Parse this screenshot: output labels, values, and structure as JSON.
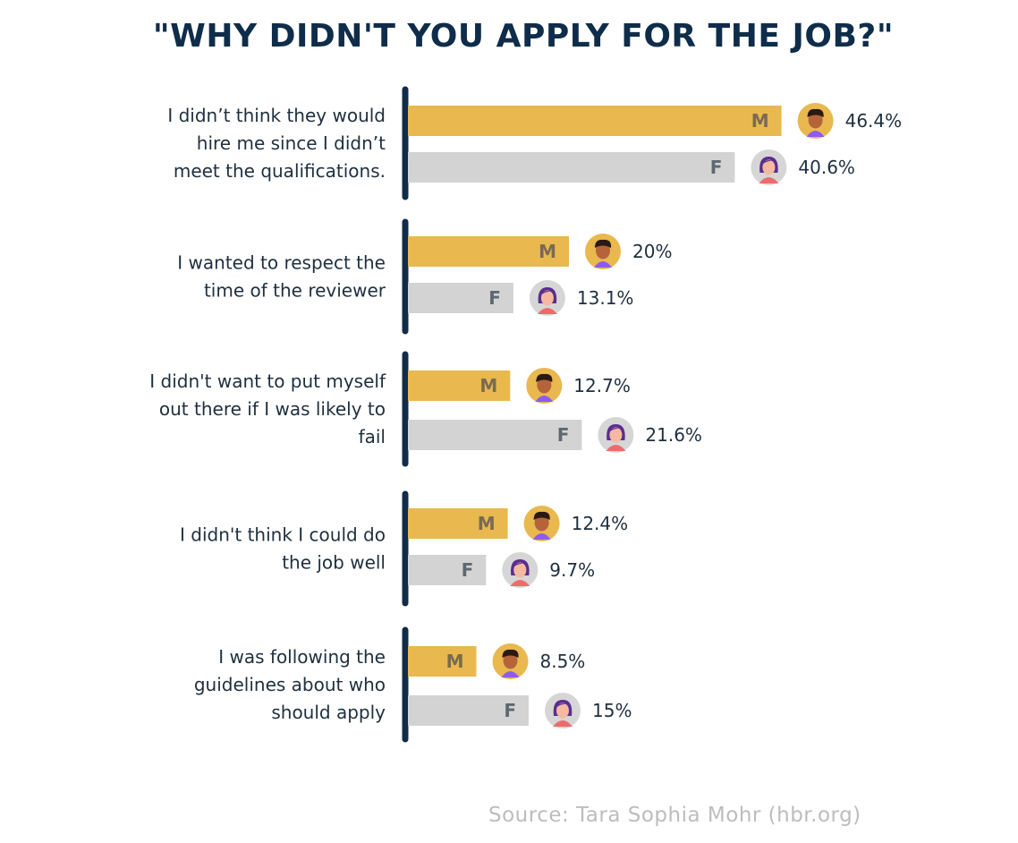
{
  "title": "\"WHY DIDN'T YOU APPLY FOR THE JOB?\"",
  "source": "Source:  Tara Sophia Mohr (hbr.org)",
  "colors": {
    "male": "#e9b84f",
    "female": "#d3d3d3",
    "axis": "#0f2d4a",
    "text": "#1f2f3f",
    "bar_letter": "#7a6a52",
    "female_letter": "#5f6770"
  },
  "chart_data": {
    "type": "bar",
    "orientation": "horizontal",
    "categories": [
      [
        "I didn’t think they would",
        "hire me since I didn’t",
        "meet the qualifications."
      ],
      [
        "I wanted to respect the",
        "time of the reviewer"
      ],
      [
        "I didn't want to put myself",
        "out there if I was likely to",
        "fail"
      ],
      [
        "I didn't think I could do",
        "the job well"
      ],
      [
        "I was following the",
        "guidelines about who",
        "should apply"
      ]
    ],
    "series": [
      {
        "name": "M",
        "values": [
          46.4,
          20,
          12.7,
          12.4,
          8.5
        ],
        "labels": [
          "46.4%",
          "20%",
          "12.7%",
          "12.4%",
          "8.5%"
        ]
      },
      {
        "name": "F",
        "values": [
          40.6,
          13.1,
          21.6,
          9.7,
          15
        ],
        "labels": [
          "40.6%",
          "13.1%",
          "21.6%",
          "9.7%",
          "15%"
        ]
      }
    ],
    "icons": [
      "man-avatar-icon",
      "woman-avatar-icon"
    ]
  }
}
